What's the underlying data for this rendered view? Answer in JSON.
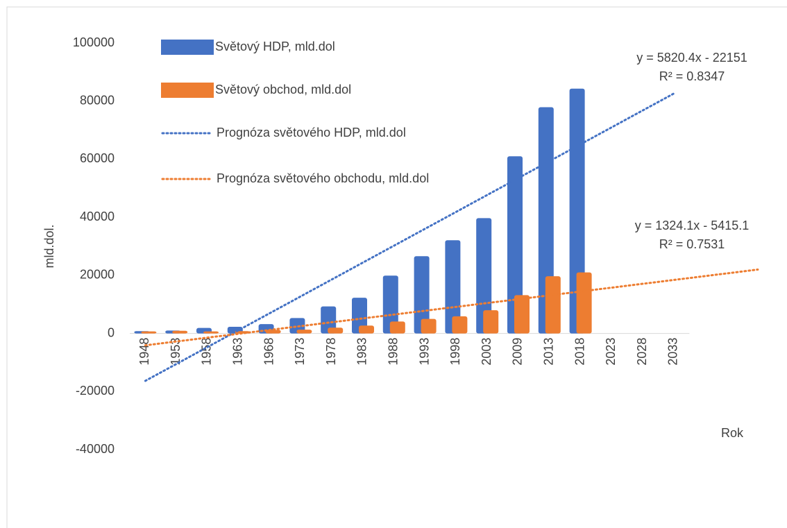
{
  "chart_data": {
    "type": "bar",
    "y_label": "mld.dol.",
    "x_label": "Rok",
    "categories": [
      "1948",
      "1953",
      "1958",
      "1963",
      "1968",
      "1973",
      "1978",
      "1983",
      "1988",
      "1993",
      "1998",
      "2003",
      "2009",
      "2013",
      "2018",
      "2023",
      "2028",
      "2033"
    ],
    "series": [
      {
        "name": "Světový HDP, mld.dol",
        "color": "#4472c4",
        "values": [
          800,
          1000,
          1900,
          2300,
          3200,
          5300,
          9300,
          12300,
          19900,
          26600,
          32100,
          39700,
          61000,
          77900,
          84300,
          null,
          null,
          null
        ]
      },
      {
        "name": "Světový obchod, mld.dol",
        "color": "#ed7d31",
        "values": [
          700,
          900,
          700,
          800,
          1200,
          1300,
          2000,
          2700,
          4100,
          5000,
          5900,
          8000,
          13200,
          19700,
          21000,
          null,
          null,
          null
        ]
      }
    ],
    "trendlines": [
      {
        "name": "Prognóza světového HDP, mld.dol",
        "color": "#4472c4",
        "equation": "y = 5820.4x - 22151",
        "r_squared": "R² = 0.8347",
        "slope": 5820.4,
        "intercept": -22151,
        "x_range": [
          1,
          18
        ]
      },
      {
        "name": "Prognóza světového obchodu, mld.dol",
        "color": "#ed7d31",
        "equation": "y = 1324.1x - 5415.1",
        "r_squared": "R² = 0.7531",
        "slope": 1324.1,
        "intercept": -5415.1,
        "x_range": [
          1,
          20.7
        ]
      }
    ],
    "ylim": [
      -40000,
      100000
    ],
    "yticks": [
      -40000,
      -20000,
      0,
      20000,
      40000,
      60000,
      80000,
      100000
    ],
    "grid": false
  }
}
